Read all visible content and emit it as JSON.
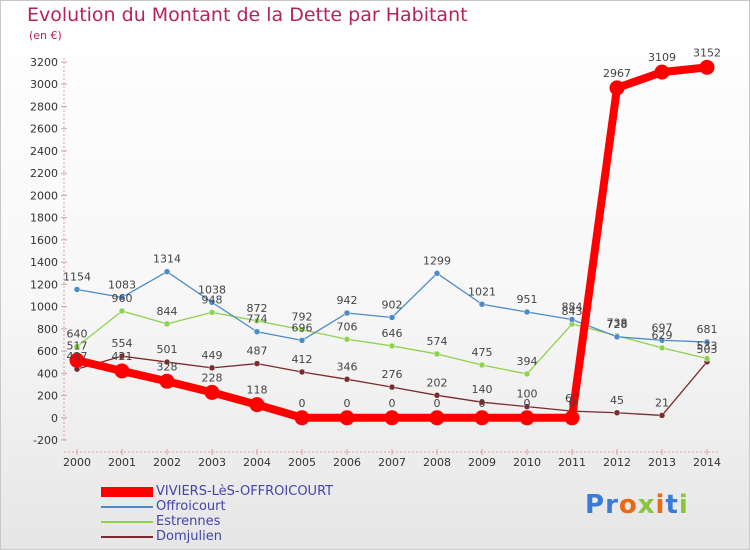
{
  "title": "Evolution du Montant de la Dette par Habitant",
  "unit_label": "(en €)",
  "brand": {
    "letters": [
      "P",
      "r",
      "o",
      "x",
      "i",
      "t",
      "i"
    ],
    "colors": [
      "#3a7bd5",
      "#3a7bd5",
      "#e86a17",
      "#8bc43f",
      "#e86a17",
      "#3a7bd5",
      "#8bc43f"
    ]
  },
  "chart_data": {
    "type": "line",
    "x": [
      "2000",
      "2001",
      "2002",
      "2003",
      "2004",
      "2005",
      "2006",
      "2007",
      "2008",
      "2009",
      "2010",
      "2011",
      "2012",
      "2013",
      "2014"
    ],
    "ylim": [
      -200,
      3200
    ],
    "yticks": [
      -200,
      0,
      200,
      400,
      600,
      800,
      1000,
      1200,
      1400,
      1600,
      1800,
      2000,
      2200,
      2400,
      2600,
      2800,
      3000,
      3200
    ],
    "grid": false,
    "legend_position": "bottom-left",
    "series": [
      {
        "name": "VIVIERS-LèS-OFFROICOURT",
        "color": "#ff0000",
        "values": [
          517,
          421,
          328,
          228,
          118,
          0,
          0,
          0,
          0,
          0,
          0,
          0,
          2967,
          3109,
          3152
        ],
        "labels": [
          "517",
          "421",
          "328",
          "228",
          "118",
          "0",
          "0",
          "0",
          "0",
          "0",
          "0",
          "0",
          "2967",
          "3109",
          "3152"
        ]
      },
      {
        "name": "Offroicourt",
        "color": "#4d8bc8",
        "values": [
          1154,
          1083,
          1314,
          1038,
          774,
          696,
          942,
          902,
          1299,
          1021,
          951,
          884,
          728,
          697,
          681
        ],
        "labels": [
          "1154",
          "1083",
          "1314",
          "1038",
          "774",
          "696",
          "942",
          "902",
          "1299",
          "1021",
          "951",
          "884",
          "728",
          "697",
          "681"
        ]
      },
      {
        "name": "Estrennes",
        "color": "#8fd24c",
        "values": [
          640,
          960,
          844,
          948,
          872,
          792,
          706,
          646,
          574,
          475,
          394,
          843,
          738,
          629,
          533
        ],
        "labels": [
          "640",
          "960",
          "844",
          "948",
          "872",
          "792",
          "706",
          "646",
          "574",
          "475",
          "394",
          "843",
          "738",
          "629",
          "533"
        ]
      },
      {
        "name": "Domjulien",
        "color": "#7a2b2b",
        "values": [
          437,
          554,
          501,
          449,
          487,
          412,
          346,
          276,
          202,
          140,
          100,
          60,
          45,
          21,
          503
        ],
        "labels": [
          "437",
          "554",
          "501",
          "449",
          "487",
          "412",
          "346",
          "276",
          "202",
          "140",
          "100",
          "60",
          "45",
          "21",
          "503"
        ]
      }
    ]
  }
}
